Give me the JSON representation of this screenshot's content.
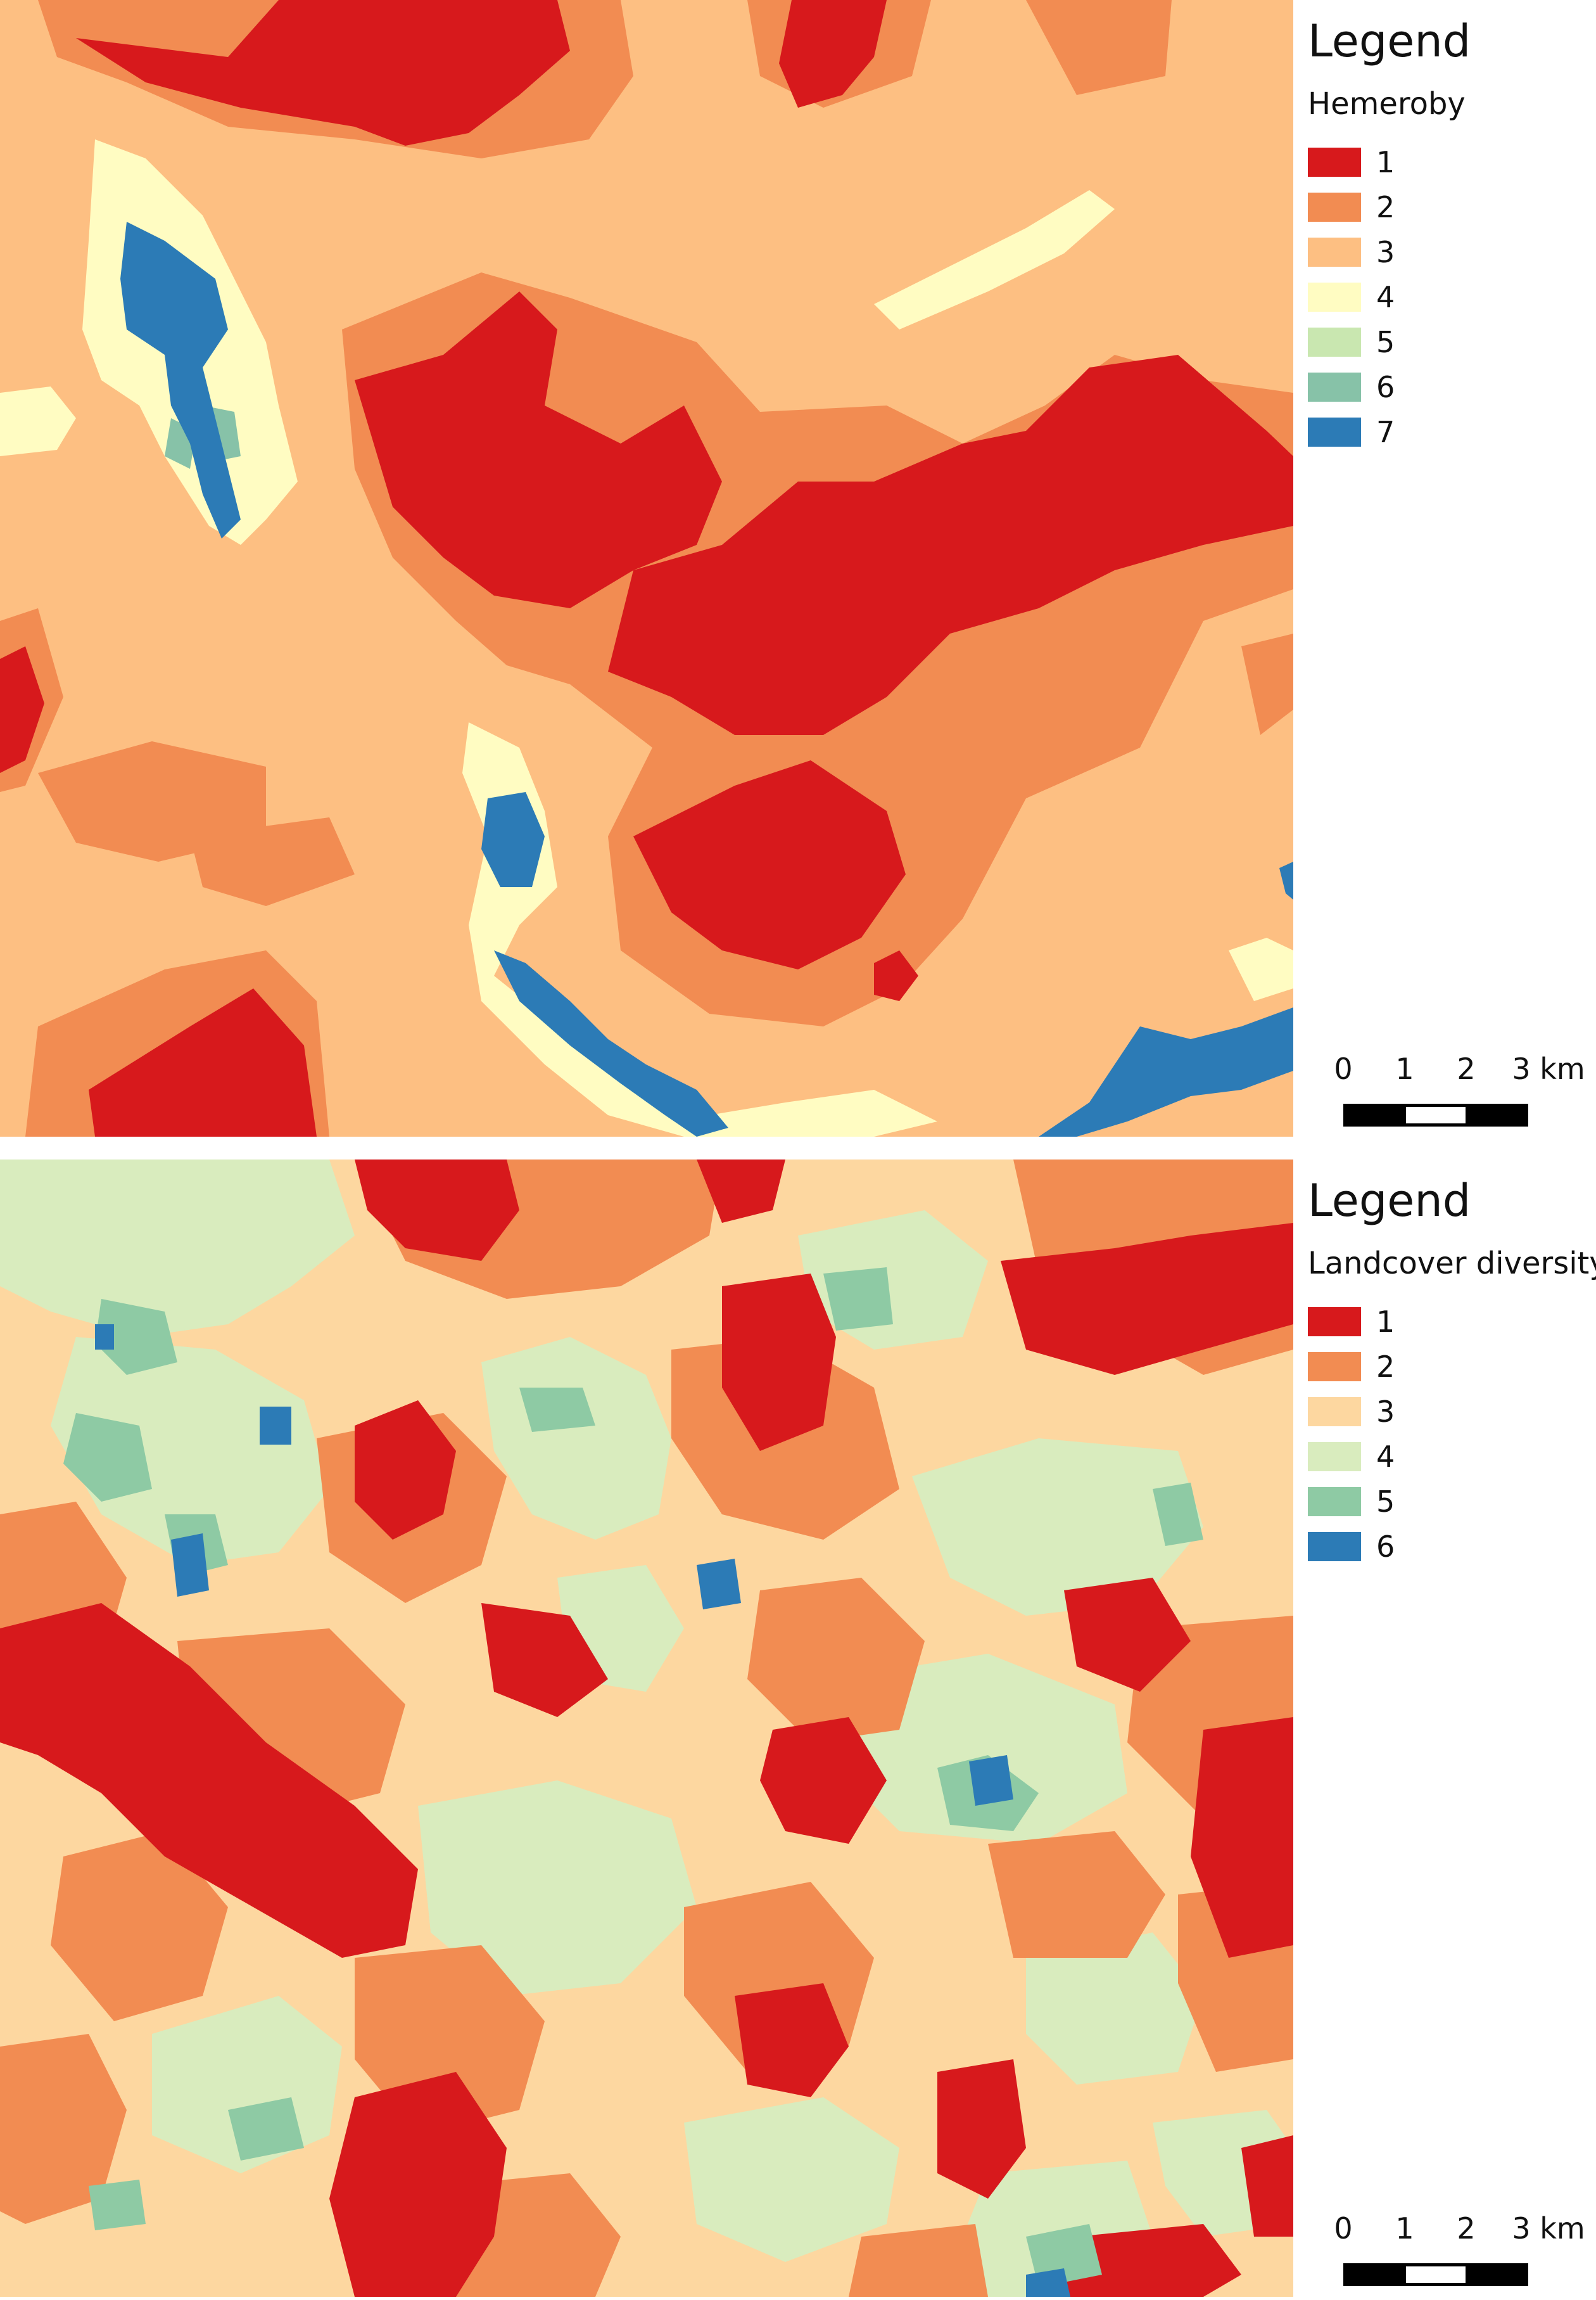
{
  "maps": [
    {
      "legend_title": "Legend",
      "variable": "Hemeroby",
      "classes": [
        {
          "label": "1",
          "color": "#d7191c"
        },
        {
          "label": "2",
          "color": "#f28c52"
        },
        {
          "label": "3",
          "color": "#fdbf82"
        },
        {
          "label": "4",
          "color": "#fffcc2"
        },
        {
          "label": "5",
          "color": "#c9e7b0"
        },
        {
          "label": "6",
          "color": "#87c2a8"
        },
        {
          "label": "7",
          "color": "#2c7bb6"
        }
      ],
      "scalebar": {
        "ticks": [
          "0",
          "1",
          "2",
          "3 km"
        ]
      }
    },
    {
      "legend_title": "Legend",
      "variable": "Landcover diversity",
      "classes": [
        {
          "label": "1",
          "color": "#d7191c"
        },
        {
          "label": "2",
          "color": "#f28c52"
        },
        {
          "label": "3",
          "color": "#fdd7a0"
        },
        {
          "label": "4",
          "color": "#d9ecbe"
        },
        {
          "label": "5",
          "color": "#8ecaa4"
        },
        {
          "label": "6",
          "color": "#2c7bb6"
        }
      ],
      "scalebar": {
        "ticks": [
          "0",
          "1",
          "2",
          "3 km"
        ]
      }
    }
  ]
}
